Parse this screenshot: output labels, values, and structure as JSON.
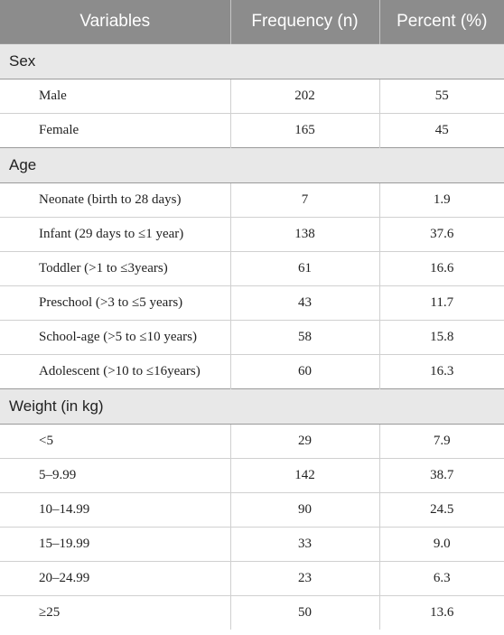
{
  "header": {
    "col1": "Variables",
    "col2": "Frequency (n)",
    "col3": "Percent (%)"
  },
  "sections": [
    {
      "title": "Sex",
      "rows": [
        {
          "label": "Male",
          "n": "202",
          "pct": "55"
        },
        {
          "label": "Female",
          "n": "165",
          "pct": "45"
        }
      ]
    },
    {
      "title": "Age",
      "rows": [
        {
          "label": "Neonate (birth to 28 days)",
          "n": "7",
          "pct": "1.9"
        },
        {
          "label": "Infant (29 days to ≤1 year)",
          "n": "138",
          "pct": "37.6"
        },
        {
          "label": "Toddler (>1 to ≤3years)",
          "n": "61",
          "pct": "16.6"
        },
        {
          "label": "Preschool (>3 to ≤5 years)",
          "n": "43",
          "pct": "11.7"
        },
        {
          "label": "School-age (>5 to ≤10 years)",
          "n": "58",
          "pct": "15.8"
        },
        {
          "label": "Adolescent (>10 to ≤16years)",
          "n": "60",
          "pct": "16.3"
        }
      ]
    },
    {
      "title": "Weight (in kg)",
      "rows": [
        {
          "label": "<5",
          "n": "29",
          "pct": "7.9"
        },
        {
          "label": "5–9.99",
          "n": "142",
          "pct": "38.7"
        },
        {
          "label": "10–14.99",
          "n": "90",
          "pct": "24.5"
        },
        {
          "label": "15–19.99",
          "n": "33",
          "pct": "9.0"
        },
        {
          "label": "20–24.99",
          "n": "23",
          "pct": "6.3"
        },
        {
          "label": "≥25",
          "n": "50",
          "pct": "13.6"
        }
      ]
    }
  ]
}
